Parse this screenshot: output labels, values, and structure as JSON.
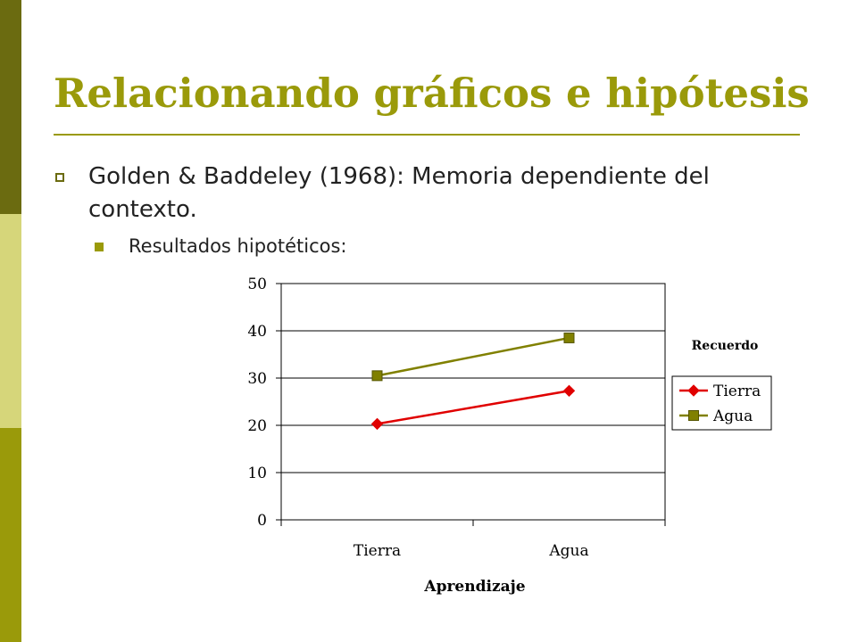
{
  "slide": {
    "title": "Relacionando gráficos e hipótesis",
    "bullet_1": "Golden & Baddeley (1968): Memoria dependiente del contexto.",
    "bullet_2": "Resultados hipotéticos:"
  },
  "colors": {
    "accent": "#9a9a0a",
    "sidebar_top": "#6b6b10",
    "sidebar_mid": "#d6d67a",
    "sidebar_bottom": "#9a9a0a",
    "series_tierra": "#e00000",
    "series_agua": "#808000"
  },
  "chart_data": {
    "type": "line",
    "categories": [
      "Tierra",
      "Agua"
    ],
    "series": [
      {
        "name": "Tierra",
        "values": [
          20.3,
          27.3
        ],
        "marker": "diamond"
      },
      {
        "name": "Agua",
        "values": [
          30.5,
          38.5
        ],
        "marker": "square"
      }
    ],
    "xlabel": "Aprendizaje",
    "legend_title": "Recuerdo",
    "ylim": [
      0,
      50
    ],
    "yticks": [
      0,
      10,
      20,
      30,
      40,
      50
    ],
    "grid": true,
    "legend_position": "right"
  }
}
